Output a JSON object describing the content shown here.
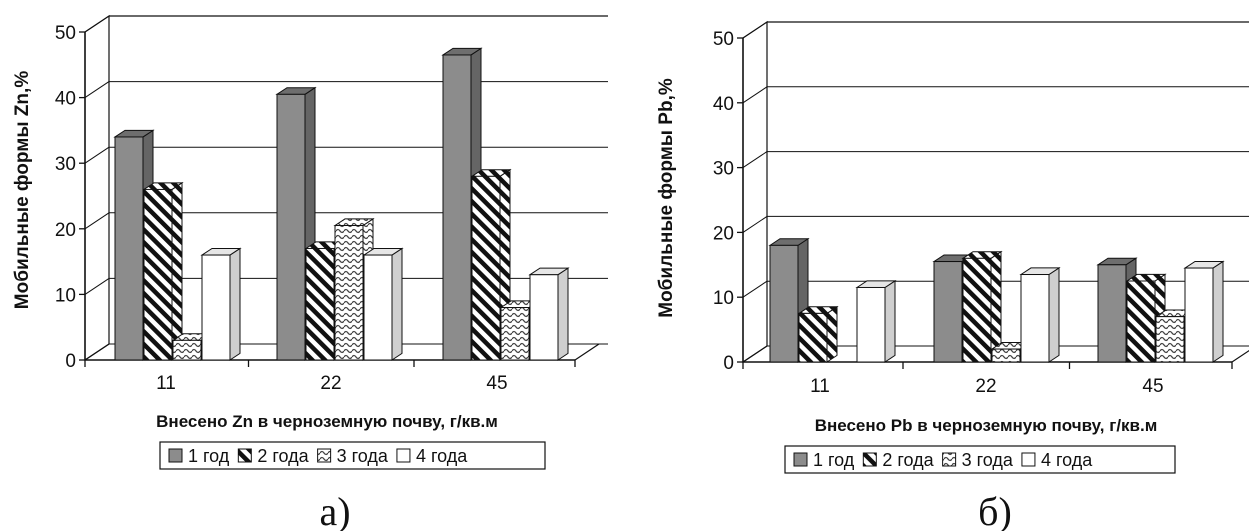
{
  "chart_data": [
    {
      "type": "bar",
      "categories": [
        "11",
        "22",
        "45"
      ],
      "series": [
        {
          "name": "1 год",
          "values": [
            34,
            40.5,
            46.5
          ]
        },
        {
          "name": "2 года",
          "values": [
            26,
            17,
            28
          ]
        },
        {
          "name": "3 года",
          "values": [
            3,
            20.5,
            8
          ]
        },
        {
          "name": "4 года",
          "values": [
            16,
            16,
            13
          ]
        }
      ],
      "xlabel": "Внесено Zn в черноземную почву, г/кв.м",
      "ylabel": "Мобильные формы Zn,%",
      "yticks": [
        "0",
        "10",
        "20",
        "30",
        "40",
        "50"
      ],
      "ylim": [
        0,
        50
      ],
      "grid": true,
      "legend": "bottom",
      "caption": "а)"
    },
    {
      "type": "bar",
      "categories": [
        "11",
        "22",
        "45"
      ],
      "series": [
        {
          "name": "1 год",
          "values": [
            18,
            15.5,
            15
          ]
        },
        {
          "name": "2 года",
          "values": [
            7.5,
            16,
            12.5
          ]
        },
        {
          "name": "3 года",
          "values": [
            0,
            2,
            7
          ]
        },
        {
          "name": "4 года",
          "values": [
            11.5,
            13.5,
            14.5
          ]
        }
      ],
      "xlabel": "Внесено Pb в черноземную почву, г/кв.м",
      "ylabel": "Мобильные формы Pb,%",
      "yticks": [
        "0",
        "10",
        "20",
        "30",
        "40",
        "50"
      ],
      "ylim": [
        0,
        50
      ],
      "grid": true,
      "legend": "bottom",
      "caption": "б)"
    }
  ],
  "colors": {
    "series_1": "#8c8c8c",
    "series_1_top": "#6e6e6e",
    "series_4": "#ffffff",
    "axis": "#111111"
  }
}
